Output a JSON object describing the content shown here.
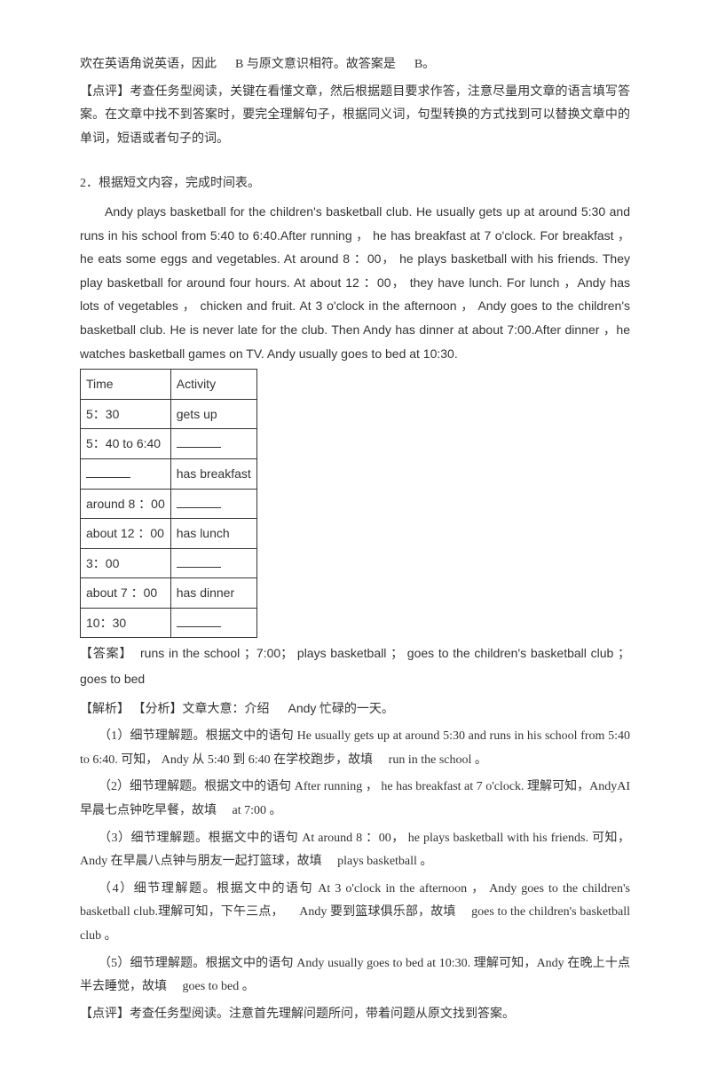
{
  "intro": {
    "line1_pre": "欢在英语角说英语，因此",
    "line1_mid": "B",
    "line1_post": "与原文意识相符。故答案是",
    "line1_end": "B。",
    "review_label": "【点评】",
    "review_text1": "考查任务型阅读，关键在看懂文章，然后根据题目要求作答，注意尽量用文章的语言填写答案。在文章中找不到答案时，要完全理解句子，根据同义词，句型转换的方式找到可以替换文章中的单词，短语或者句子的词。"
  },
  "q2": {
    "number": "2．",
    "stem": "根据短文内容，完成时间表。",
    "passage": "Andy plays basketball for the children's basketball club. He usually gets up at around 5:30 and runs in his school from 5:40 to 6:40.After running ， he has breakfast at 7 o'clock. For breakfast ，he eats some eggs and vegetables. At around 8 ：00， he plays basketball with his friends. They play basketball for around four hours. At about 12 ：00， they have lunch. For lunch ，Andy has lots of vegetables ， chicken and fruit. At 3 o'clock in the afternoon ， Andy goes to the children's basketball club. He is never late for the club. Then Andy has dinner at about 7:00.After dinner ，he watches basketball games on TV. Andy usually goes to bed at 10:30."
  },
  "table": {
    "header_time": "Time",
    "header_activity": "Activity",
    "rows": [
      {
        "time": "5：30",
        "activity": "gets up",
        "time_blank": false,
        "act_blank": false
      },
      {
        "time": "5：40 to 6:40",
        "activity": "",
        "time_blank": false,
        "act_blank": true
      },
      {
        "time": "",
        "activity": "has breakfast",
        "time_blank": true,
        "act_blank": false
      },
      {
        "time": "around 8 ：00",
        "activity": "",
        "time_blank": false,
        "act_blank": true
      },
      {
        "time": "about 12 ：00",
        "activity": "has lunch",
        "time_blank": false,
        "act_blank": false
      },
      {
        "time": "3：00",
        "activity": "",
        "time_blank": false,
        "act_blank": true
      },
      {
        "time": "about 7 ：00",
        "activity": "has dinner",
        "time_blank": false,
        "act_blank": false
      },
      {
        "time": "10：30",
        "activity": "",
        "time_blank": false,
        "act_blank": true
      }
    ]
  },
  "answer": {
    "label": "【答案】",
    "text": "runs in the school ；7:00； plays basketball ； goes to the children's basketball club ；goes to bed"
  },
  "analysis": {
    "label1": "【解析】",
    "label2": "【分析】",
    "gist_pre": "文章大意：介绍",
    "gist_mid": "Andy",
    "gist_post": "忙碌的一天。",
    "items": [
      "（1）细节理解题。根据文中的语句 He usually gets up at around 5:30 and runs in his school from 5:40 to 6:40. 可知， Andy 从 5:40 到 6:40 在学校跑步，故填  run in the school 。",
      "（2）细节理解题。根据文中的语句 After running ， he has breakfast at 7 o'clock. 理解可知，AndyAI 早晨七点钟吃早餐，故填  at 7:00 。",
      "（3）细节理解题。根据文中的语句 At around 8 ：00， he plays basketball with his friends. 可知，Andy 在早晨八点钟与朋友一起打篮球，故填  plays basketball 。",
      "（4）细节理解题。根据文中的语句 At 3 o'clock in the afternoon ， Andy goes to the children's basketball club.理解可知，下午三点，  Andy 要到篮球俱乐部，故填  goes to  the children's basketball club 。",
      "（5）细节理解题。根据文中的语句 Andy usually goes to bed at 10:30. 理解可知，Andy 在晚上十点半去睡觉，故填  goes to bed 。"
    ],
    "review_label": "【点评】",
    "review_text": "考查任务型阅读。注意首先理解问题所问，带着问题从原文找到答案。"
  }
}
